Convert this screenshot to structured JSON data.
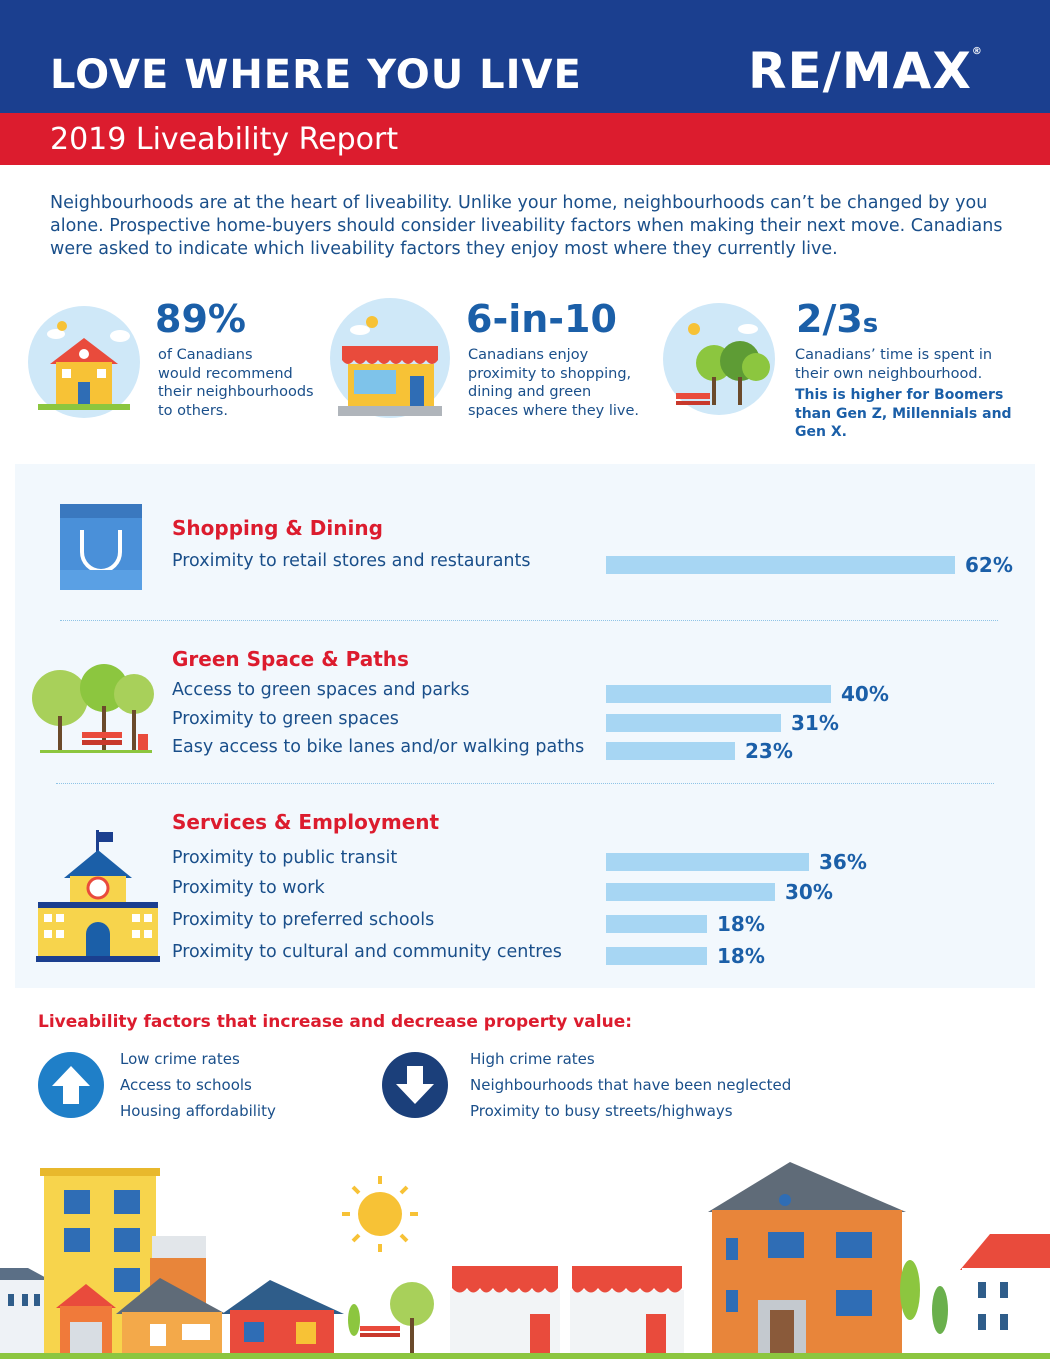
{
  "header": {
    "title": "LOVE WHERE YOU LIVE",
    "logo": "RE/MAX",
    "logo_mark": "®",
    "subtitle": "2019 Liveability Report"
  },
  "intro": "Neighbourhoods are at the heart of liveability. Unlike your home, neighbourhoods can’t be changed by you alone. Prospective home-buyers should consider liveability factors when making their next move. Canadians were asked to indicate which liveability factors they enjoy most where they currently live.",
  "stats": [
    {
      "icon": "house-icon",
      "value": "89%",
      "lines": [
        "of Canadians",
        "would recommend",
        "their neighbourhoods",
        "to others."
      ]
    },
    {
      "icon": "storefront-icon",
      "value": "6-in-10",
      "lines": [
        "Canadians enjoy",
        "proximity to shopping,",
        "dining and green",
        "spaces where they live."
      ]
    },
    {
      "icon": "park-icon",
      "value": "2/3",
      "value_suffix": "s",
      "lines": [
        "Canadians’ time is spent in",
        "their own neighbourhood."
      ],
      "emphasis": [
        "This is higher for Boomers",
        "than Gen Z, Millennials and",
        "Gen X."
      ]
    }
  ],
  "categories": [
    {
      "title": "Shopping & Dining",
      "icon": "shopping-bag-icon",
      "factors": [
        {
          "label": "Proximity to retail stores and restaurants",
          "percent": 62,
          "value_label": "62%"
        }
      ]
    },
    {
      "title": "Green Space & Paths",
      "icon": "trees-bench-icon",
      "factors": [
        {
          "label": "Access to green spaces and parks",
          "percent": 40,
          "value_label": "40%"
        },
        {
          "label": "Proximity to green spaces",
          "percent": 31,
          "value_label": "31%"
        },
        {
          "label": "Easy access to bike lanes and/or walking paths",
          "percent": 23,
          "value_label": "23%"
        }
      ]
    },
    {
      "title": "Services & Employment",
      "icon": "school-building-icon",
      "factors": [
        {
          "label": "Proximity to public transit",
          "percent": 36,
          "value_label": "36%"
        },
        {
          "label": "Proximity to work",
          "percent": 30,
          "value_label": "30%"
        },
        {
          "label": "Proximity to preferred schools",
          "percent": 18,
          "value_label": "18%"
        },
        {
          "label": "Proximity to cultural and community centres",
          "percent": 18,
          "value_label": "18%"
        }
      ]
    }
  ],
  "property_value": {
    "heading": "Liveability factors that increase and decrease property value:",
    "increase": {
      "icon": "arrow-up-icon",
      "items": [
        "Low crime rates",
        "Access to schools",
        "Housing affordability"
      ]
    },
    "decrease": {
      "icon": "arrow-down-icon",
      "items": [
        "High crime rates",
        "Neighbourhoods that have been neglected",
        "Proximity to busy streets/highways"
      ]
    }
  },
  "colors": {
    "brand_blue": "#1b3f8f",
    "brand_red": "#dc1c2e",
    "text_blue": "#1a4f8a",
    "accent_blue": "#1b5fa8",
    "bar_blue": "#a7d6f3",
    "panel_bg": "#f2f8fd"
  }
}
